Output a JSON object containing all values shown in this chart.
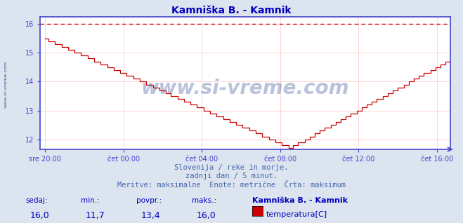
{
  "title": "Kamniška B. - Kamnik",
  "title_color": "#0000bb",
  "bg_color": "#dce4f0",
  "plot_bg_color": "#ffffff",
  "grid_color": "#ffaaaa",
  "axis_color": "#4444cc",
  "line_color": "#cc0000",
  "dashed_line_color": "#cc0000",
  "dashed_line_y": 16.0,
  "ylim_min": 11.65,
  "ylim_max": 16.25,
  "yticks": [
    12,
    13,
    14,
    15,
    16
  ],
  "xtick_labels": [
    "sre 20:00",
    "čet 00:00",
    "čet 04:00",
    "čet 08:00",
    "čet 12:00",
    "čet 16:00"
  ],
  "xtick_positions": [
    0,
    48,
    96,
    144,
    192,
    240
  ],
  "watermark": "www.si-vreme.com",
  "watermark_color": "#1a3a8a",
  "side_text": "www.si-vreme.com",
  "subtitle1": "Slovenija / reke in morje.",
  "subtitle2": "zadnji dan / 5 minut.",
  "subtitle3": "Meritve: maksimalne  Enote: metrične  Črta: maksimum",
  "subtitle_color": "#4466aa",
  "footer_labels": [
    "sedaj:",
    "min.:",
    "povpr.:",
    "maks.:"
  ],
  "footer_values": [
    "16,0",
    "11,7",
    "13,4",
    "16,0"
  ],
  "footer_color": "#0000bb",
  "legend_title": "Kamniška B. - Kamnik",
  "legend_series": "temperatura[C]",
  "legend_color": "#cc0000",
  "n_points": 288,
  "xlim_min": -3,
  "xlim_max": 248
}
